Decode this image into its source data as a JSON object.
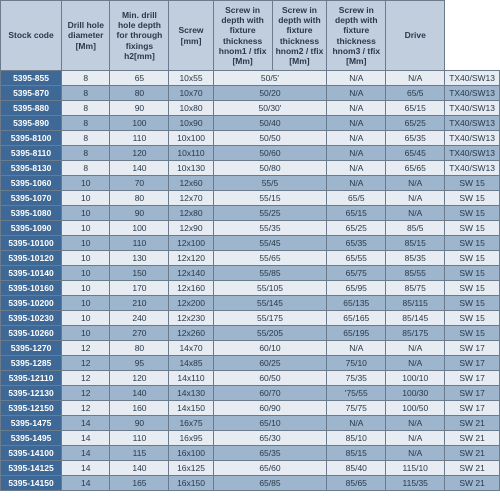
{
  "table": {
    "header_bg": "#c1cedd",
    "stock_bg": "#3e6896",
    "row_light_bg": "#e6ecf2",
    "row_dark_bg": "#9db5cd",
    "border_color": "#6B7B8C",
    "text_color": "#2a3a4a",
    "font_size": 8.5,
    "columns": [
      "Stock code",
      "Drill hole diameter [Mm]",
      "Min. drill hole depth for through fixings h2[mm]",
      "Screw [mm]",
      "Screw in depth with fixture thickness hnom1 / tfix [Mm]",
      "Screw in depth with fixture thickness hnom2 / tfix [Mm]",
      "Screw in depth with fixture thickness hnom3 / tfix [Mm]",
      "Drive"
    ],
    "rows": [
      [
        "5395-855",
        "8",
        "65",
        "10x55",
        "50/5'",
        "N/A",
        "N/A",
        "TX40/SW13"
      ],
      [
        "5395-870",
        "8",
        "80",
        "10x70",
        "50/20",
        "N/A",
        "65/5",
        "TX40/SW13"
      ],
      [
        "5395-880",
        "8",
        "90",
        "10x80",
        "50/30'",
        "N/A",
        "65/15",
        "TX40/SW13"
      ],
      [
        "5395-890",
        "8",
        "100",
        "10x90",
        "50/40",
        "N/A",
        "65/25",
        "TX40/SW13"
      ],
      [
        "5395-8100",
        "8",
        "110",
        "10x100",
        "50/50",
        "N/A",
        "65/35",
        "TX40/SW13"
      ],
      [
        "5395-8110",
        "8",
        "120",
        "10x110",
        "50/60",
        "N/A",
        "65/45",
        "TX40/SW13"
      ],
      [
        "5395-8130",
        "8",
        "140",
        "10x130",
        "50/80",
        "N/A",
        "65/65",
        "TX40/SW13"
      ],
      [
        "5395-1060",
        "10",
        "70",
        "12x60",
        "55/5",
        "N/A",
        "N/A",
        "SW 15"
      ],
      [
        "5395-1070",
        "10",
        "80",
        "12x70",
        "55/15",
        "65/5",
        "N/A",
        "SW 15"
      ],
      [
        "5395-1080",
        "10",
        "90",
        "12x80",
        "55/25",
        "65/15",
        "N/A",
        "SW 15"
      ],
      [
        "5395-1090",
        "10",
        "100",
        "12x90",
        "55/35",
        "65/25",
        "85/5",
        "SW 15"
      ],
      [
        "5395-10100",
        "10",
        "110",
        "12x100",
        "55/45",
        "65/35",
        "85/15",
        "SW 15"
      ],
      [
        "5395-10120",
        "10",
        "130",
        "12x120",
        "55/65",
        "65/55",
        "85/35",
        "SW 15"
      ],
      [
        "5395-10140",
        "10",
        "150",
        "12x140",
        "55/85",
        "65/75",
        "85/55",
        "SW 15"
      ],
      [
        "5395-10160",
        "10",
        "170",
        "12x160",
        "55/105",
        "65/95",
        "85/75",
        "SW 15"
      ],
      [
        "5395-10200",
        "10",
        "210",
        "12x200",
        "55/145",
        "65/135",
        "85/115",
        "SW 15"
      ],
      [
        "5395-10230",
        "10",
        "240",
        "12x230",
        "55/175",
        "65/165",
        "85/145",
        "SW 15"
      ],
      [
        "5395-10260",
        "10",
        "270",
        "12x260",
        "55/205",
        "65/195",
        "85/175",
        "SW 15"
      ],
      [
        "5395-1270",
        "12",
        "80",
        "14x70",
        "60/10",
        "N/A",
        "N/A",
        "SW 17"
      ],
      [
        "5395-1285",
        "12",
        "95",
        "14x85",
        "60/25",
        "75/10",
        "N/A",
        "SW 17"
      ],
      [
        "5395-12110",
        "12",
        "120",
        "14x110",
        "60/50",
        "75/35",
        "100/10",
        "SW 17"
      ],
      [
        "5395-12130",
        "12",
        "140",
        "14x130",
        "60/70",
        "'75/55",
        "100/30",
        "SW 17"
      ],
      [
        "5395-12150",
        "12",
        "160",
        "14x150",
        "60/90",
        "75/75",
        "100/50",
        "SW 17"
      ],
      [
        "5395-1475",
        "14",
        "90",
        "16x75",
        "65/10",
        "N/A",
        "N/A",
        "SW 21"
      ],
      [
        "5395-1495",
        "14",
        "110",
        "16x95",
        "65/30",
        "85/10",
        "N/A",
        "SW 21"
      ],
      [
        "5395-14100",
        "14",
        "115",
        "16x100",
        "65/35",
        "85/15",
        "N/A",
        "SW 21"
      ],
      [
        "5395-14125",
        "14",
        "140",
        "16x125",
        "65/60",
        "85/40",
        "115/10",
        "SW 21"
      ],
      [
        "5395-14150",
        "14",
        "165",
        "16x150",
        "65/85",
        "85/65",
        "115/35",
        "SW 21"
      ]
    ]
  }
}
